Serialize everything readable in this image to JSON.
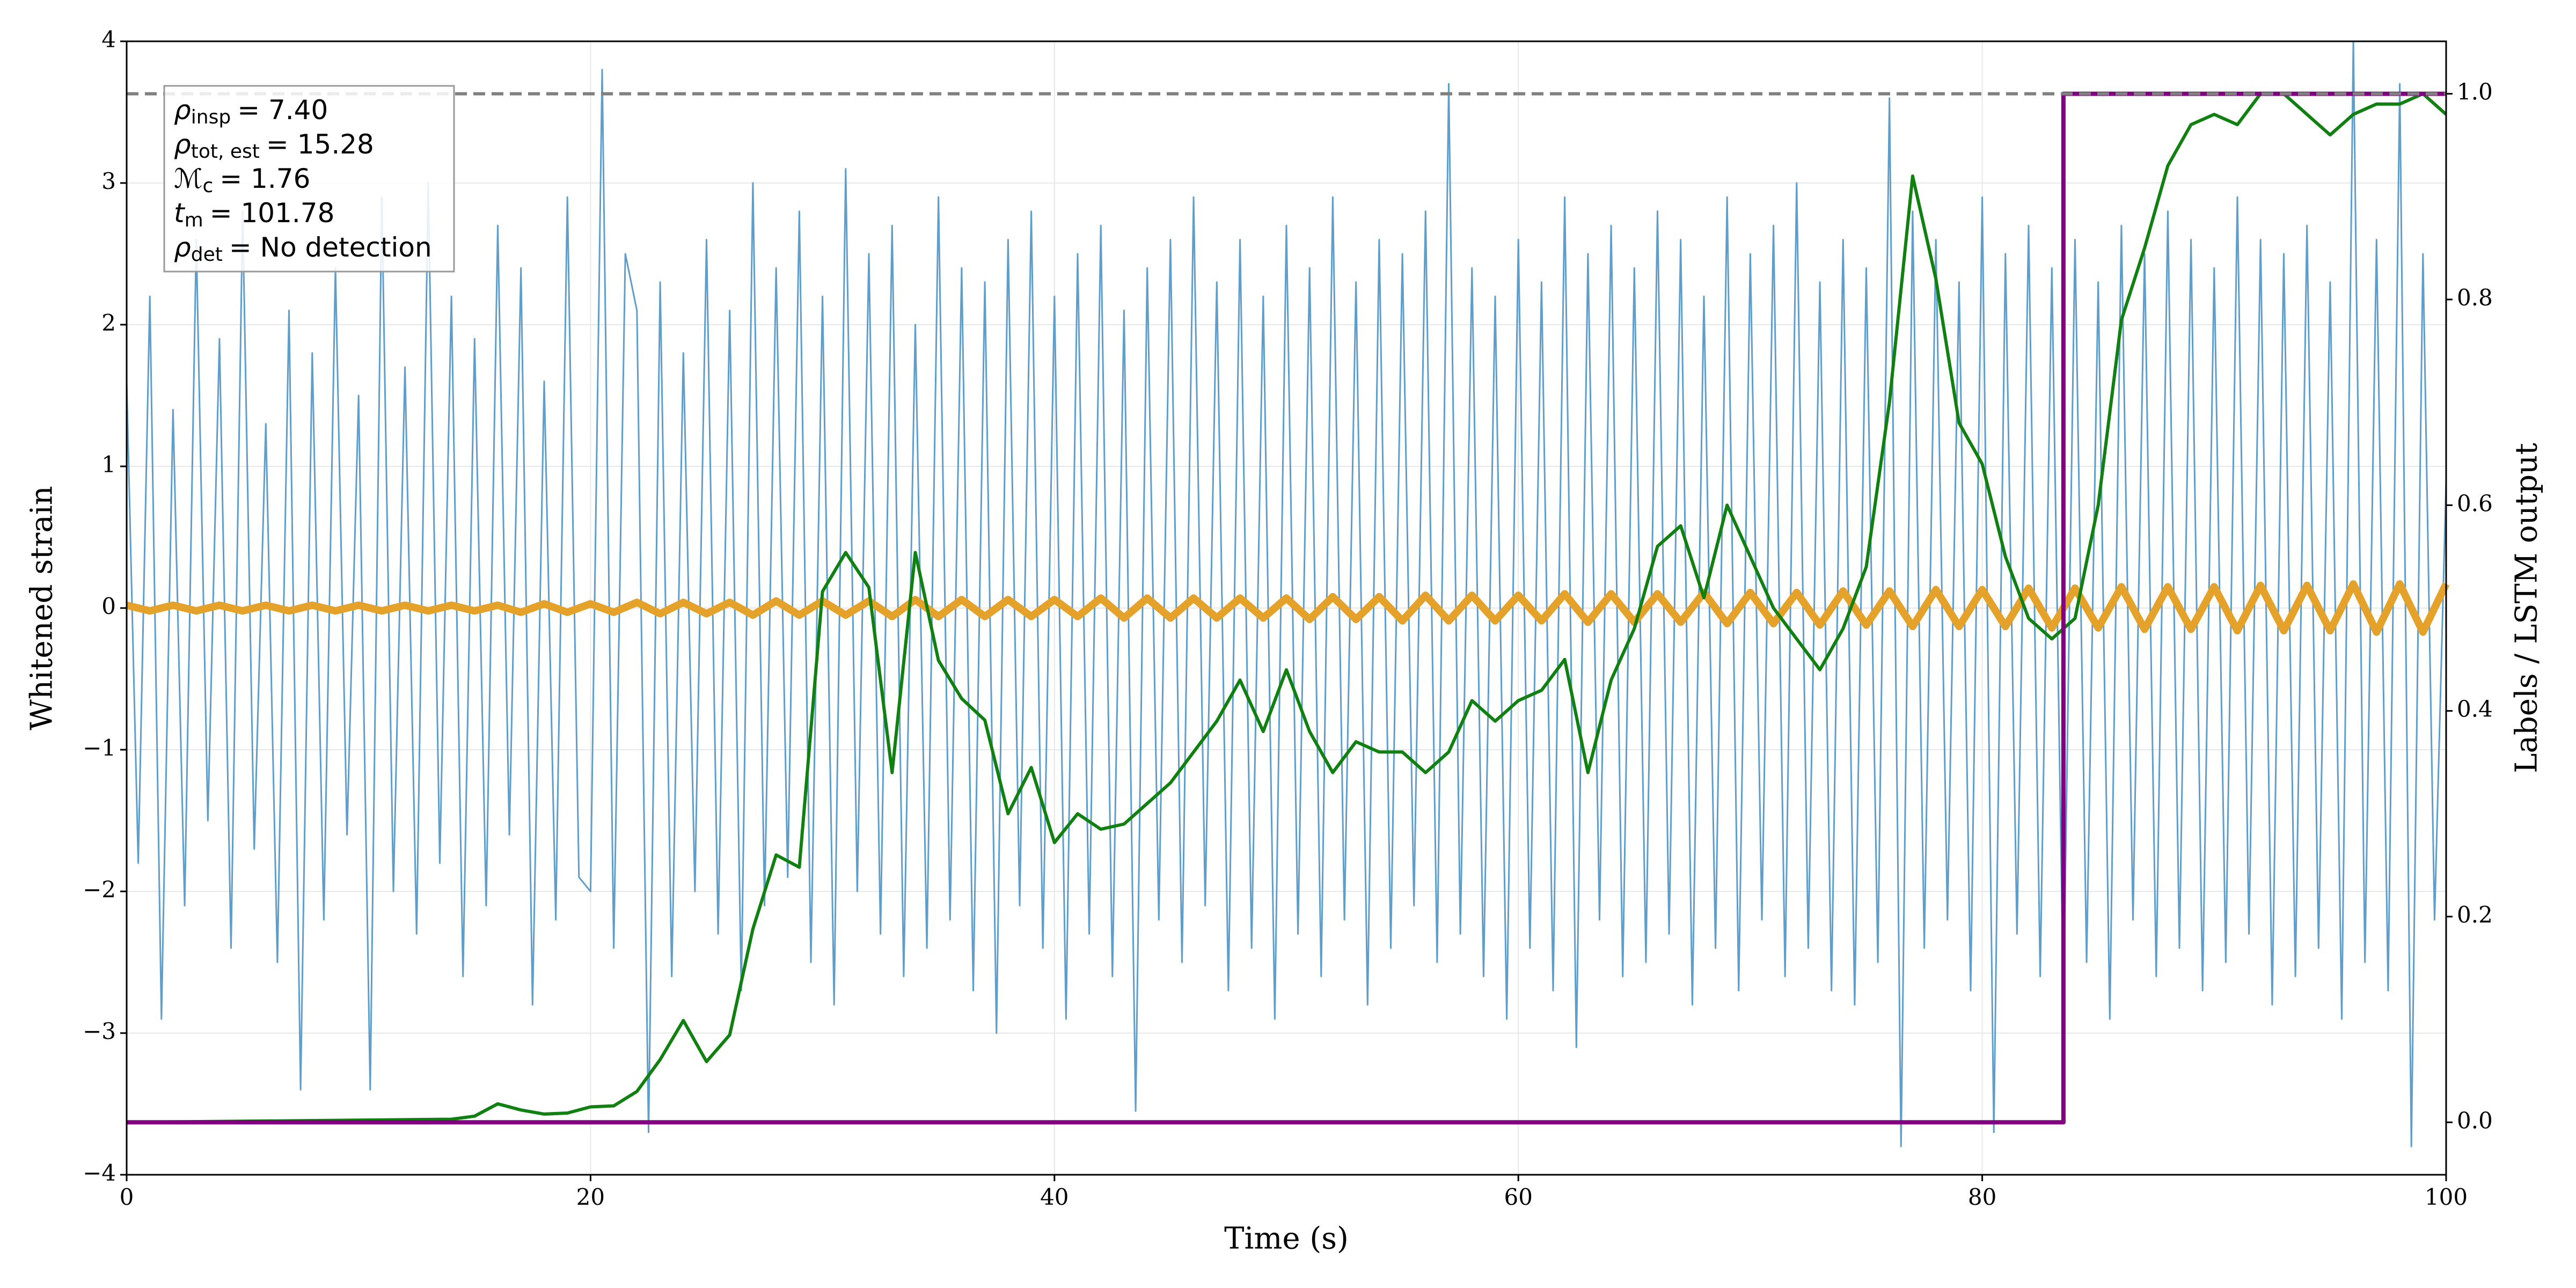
{
  "chart_data": {
    "type": "line",
    "xlabel": "Time (s)",
    "ylabel": "Whitened strain",
    "y2label": "Labels / LSTM output",
    "xlim": [
      0,
      100
    ],
    "xticks": [
      0,
      20,
      40,
      60,
      80,
      100
    ],
    "ylim": [
      -4,
      4
    ],
    "yticks": [
      {
        "value": -4,
        "label": "−4"
      },
      {
        "value": -3,
        "label": "−3"
      },
      {
        "value": -2,
        "label": "−2"
      },
      {
        "value": -1,
        "label": "−1"
      },
      0,
      1,
      2,
      3,
      4
    ],
    "y2lim": [
      -0.051,
      1.051
    ],
    "y2ticks": [
      {
        "value": 0,
        "label": "0.0"
      },
      0.2,
      0.4,
      0.6,
      0.8,
      {
        "value": 1,
        "label": "1.0"
      }
    ],
    "grid": true,
    "annotations": [
      {
        "symbol": "ρ",
        "sub": "insp",
        "text": "= 7.40"
      },
      {
        "symbol": "ρ",
        "sub": "tot, est",
        "text": "= 15.28"
      },
      {
        "symbol": "ℳ",
        "sub": "c",
        "text": "= 1.76"
      },
      {
        "symbol": "t",
        "sub": "m",
        "text": "= 101.78"
      },
      {
        "symbol": "ρ",
        "sub": "det",
        "text": "= No detection"
      }
    ],
    "series": [
      {
        "color": "#5f9ecb",
        "axis": "y",
        "width": 3,
        "x": [
          0,
          0.5,
          1,
          1.5,
          2,
          2.5,
          3,
          3.5,
          4,
          4.5,
          5,
          5.5,
          6,
          6.5,
          7,
          7.5,
          8,
          8.5,
          9,
          9.5,
          10,
          10.5,
          11,
          11.5,
          12,
          12.5,
          13,
          13.5,
          14,
          14.5,
          15,
          15.5,
          16,
          16.5,
          17,
          17.5,
          18,
          18.5,
          19,
          19.5,
          20,
          20.5,
          21,
          21.5,
          22,
          22.5,
          23,
          23.5,
          24,
          24.5,
          25,
          25.5,
          26,
          26.5,
          27,
          27.5,
          28,
          28.5,
          29,
          29.5,
          30,
          30.5,
          31,
          31.5,
          32,
          32.5,
          33,
          33.5,
          34,
          34.5,
          35,
          35.5,
          36,
          36.5,
          37,
          37.5,
          38,
          38.5,
          39,
          39.5,
          40,
          40.5,
          41,
          41.5,
          42,
          42.5,
          43,
          43.5,
          44,
          44.5,
          45,
          45.5,
          46,
          46.5,
          47,
          47.5,
          48,
          48.5,
          49,
          49.5,
          50,
          50.5,
          51,
          51.5,
          52,
          52.5,
          53,
          53.5,
          54,
          54.5,
          55,
          55.5,
          56,
          56.5,
          57,
          57.5,
          58,
          58.5,
          59,
          59.5,
          60,
          60.5,
          61,
          61.5,
          62,
          62.5,
          63,
          63.5,
          64,
          64.5,
          65,
          65.5,
          66,
          66.5,
          67,
          67.5,
          68,
          68.5,
          69,
          69.5,
          70,
          70.5,
          71,
          71.5,
          72,
          72.5,
          73,
          73.5,
          74,
          74.5,
          75,
          75.5,
          76,
          76.5,
          77,
          77.5,
          78,
          78.5,
          79,
          79.5,
          80,
          80.5,
          81,
          81.5,
          82,
          82.5,
          83,
          83.5,
          84,
          84.5,
          85,
          85.5,
          86,
          86.5,
          87,
          87.5,
          88,
          88.5,
          89,
          89.5,
          90,
          90.5,
          91,
          91.5,
          92,
          92.5,
          93,
          93.5,
          94,
          94.5,
          95,
          95.5,
          96,
          96.5,
          97,
          97.5,
          98,
          98.5,
          99,
          99.5,
          100
        ],
        "values": [
          1.6,
          -1.8,
          2.2,
          -2.9,
          1.4,
          -2.1,
          2.6,
          -1.5,
          1.9,
          -2.4,
          2.8,
          -1.7,
          1.3,
          -2.5,
          2.1,
          -3.4,
          1.8,
          -2.2,
          2.4,
          -1.6,
          1.5,
          -3.4,
          2.9,
          -2.0,
          1.7,
          -2.3,
          3.0,
          -1.8,
          2.2,
          -2.6,
          1.9,
          -2.1,
          2.7,
          -1.6,
          2.4,
          -2.8,
          1.6,
          -2.2,
          2.9,
          -1.9,
          -2.0,
          3.8,
          -2.4,
          2.5,
          2.1,
          -3.7,
          2.3,
          -2.6,
          1.8,
          -2.0,
          2.6,
          -2.3,
          2.1,
          -2.7,
          3.0,
          -2.1,
          2.4,
          -1.9,
          2.8,
          -2.5,
          2.2,
          -2.8,
          3.1,
          -2.0,
          2.5,
          -2.3,
          2.7,
          -2.6,
          2.0,
          -2.4,
          2.9,
          -2.2,
          2.4,
          -2.7,
          2.3,
          -3.0,
          2.6,
          -2.1,
          2.8,
          -2.4,
          2.2,
          -2.9,
          2.5,
          -2.3,
          2.7,
          -2.6,
          2.1,
          -3.55,
          2.4,
          -2.2,
          2.6,
          -2.5,
          2.9,
          -2.1,
          2.3,
          -2.7,
          2.6,
          -2.4,
          2.2,
          -2.9,
          2.7,
          -2.3,
          2.4,
          -2.6,
          2.9,
          -2.2,
          2.3,
          -2.8,
          2.6,
          -2.4,
          2.5,
          -2.1,
          2.8,
          -2.5,
          3.7,
          -2.3,
          2.4,
          -2.6,
          2.2,
          -2.9,
          2.6,
          -2.4,
          2.3,
          -2.7,
          2.9,
          -3.1,
          2.5,
          -2.2,
          2.7,
          -2.6,
          2.4,
          -2.5,
          2.8,
          -2.3,
          2.6,
          -2.8,
          2.2,
          -2.4,
          2.9,
          -2.7,
          2.5,
          -2.2,
          2.7,
          -2.6,
          3.0,
          -2.4,
          2.3,
          -2.7,
          2.6,
          -2.8,
          2.4,
          -2.5,
          3.6,
          -3.8,
          2.8,
          -2.4,
          2.6,
          -2.2,
          2.3,
          -2.7,
          2.9,
          -3.7,
          2.5,
          -2.3,
          2.7,
          -2.6,
          2.4,
          -2.8,
          2.6,
          -2.5,
          2.3,
          -2.9,
          2.7,
          -2.2,
          2.5,
          -2.6,
          2.8,
          -2.4,
          2.6,
          -2.7,
          2.4,
          -2.5,
          2.9,
          -2.3,
          2.6,
          -2.8,
          2.5,
          -2.6,
          2.7,
          -2.4,
          2.3,
          -2.9,
          4.0,
          -2.5,
          2.6,
          -2.7,
          3.7,
          -3.8,
          2.5,
          -2.2,
          0.9
        ]
      },
      {
        "color": "#e5a22b",
        "axis": "y",
        "width": 14,
        "x": [
          0,
          1,
          2,
          3,
          4,
          5,
          6,
          7,
          8,
          9,
          10,
          11,
          12,
          13,
          14,
          15,
          16,
          17,
          18,
          19,
          20,
          21,
          22,
          23,
          24,
          25,
          26,
          27,
          28,
          29,
          30,
          31,
          32,
          33,
          34,
          35,
          36,
          37,
          38,
          39,
          40,
          41,
          42,
          43,
          44,
          45,
          46,
          47,
          48,
          49,
          50,
          51,
          52,
          53,
          54,
          55,
          56,
          57,
          58,
          59,
          60,
          61,
          62,
          63,
          64,
          65,
          66,
          67,
          68,
          69,
          70,
          71,
          72,
          73,
          74,
          75,
          76,
          77,
          78,
          79,
          80,
          81,
          82,
          83,
          84,
          85,
          86,
          87,
          88,
          89,
          90,
          91,
          92,
          93,
          94,
          95,
          96,
          97,
          98,
          99,
          100
        ],
        "values": [
          0.02,
          -0.02,
          0.02,
          -0.02,
          0.02,
          -0.02,
          0.02,
          -0.02,
          0.02,
          -0.02,
          0.02,
          -0.02,
          0.02,
          -0.02,
          0.02,
          -0.02,
          0.02,
          -0.03,
          0.03,
          -0.03,
          0.03,
          -0.03,
          0.04,
          -0.04,
          0.04,
          -0.04,
          0.04,
          -0.05,
          0.05,
          -0.05,
          0.05,
          -0.05,
          0.05,
          -0.06,
          0.06,
          -0.06,
          0.06,
          -0.06,
          0.06,
          -0.06,
          0.06,
          -0.06,
          0.07,
          -0.07,
          0.07,
          -0.07,
          0.07,
          -0.07,
          0.07,
          -0.07,
          0.07,
          -0.08,
          0.08,
          -0.08,
          0.08,
          -0.09,
          0.09,
          -0.09,
          0.09,
          -0.09,
          0.09,
          -0.09,
          0.1,
          -0.1,
          0.1,
          -0.1,
          0.1,
          -0.1,
          0.11,
          -0.11,
          0.11,
          -0.11,
          0.11,
          -0.12,
          0.12,
          -0.12,
          0.12,
          -0.13,
          0.13,
          -0.13,
          0.13,
          -0.13,
          0.14,
          -0.14,
          0.14,
          -0.14,
          0.15,
          -0.15,
          0.15,
          -0.15,
          0.15,
          -0.16,
          0.16,
          -0.16,
          0.16,
          -0.16,
          0.17,
          -0.17,
          0.17,
          -0.17,
          0.17
        ]
      },
      {
        "color": "#108010",
        "axis": "y2",
        "width": 6,
        "x": [
          0,
          14,
          15,
          16,
          17,
          18,
          19,
          20,
          21,
          22,
          23,
          24,
          25,
          26,
          27,
          28,
          29,
          30,
          31,
          32,
          33,
          34,
          35,
          36,
          37,
          38,
          39,
          40,
          41,
          42,
          43,
          44,
          45,
          46,
          47,
          48,
          49,
          50,
          51,
          52,
          53,
          54,
          55,
          56,
          57,
          58,
          59,
          60,
          61,
          62,
          63,
          64,
          65,
          66,
          67,
          68,
          69,
          70,
          71,
          72,
          73,
          74,
          75,
          76,
          77,
          78,
          79,
          80,
          81,
          82,
          83,
          84,
          85,
          86,
          87,
          88,
          89,
          90,
          91,
          92,
          93,
          94,
          95,
          96,
          97,
          98,
          99,
          100
        ],
        "values": [
          0,
          0.003,
          0.006,
          0.018,
          0.012,
          0.008,
          0.009,
          0.015,
          0.016,
          0.03,
          0.061,
          0.099,
          0.059,
          0.085,
          0.188,
          0.26,
          0.248,
          0.516,
          0.554,
          0.52,
          0.34,
          0.554,
          0.449,
          0.412,
          0.391,
          0.3,
          0.345,
          0.272,
          0.3,
          0.285,
          0.29,
          0.31,
          0.33,
          0.36,
          0.39,
          0.43,
          0.38,
          0.44,
          0.38,
          0.34,
          0.37,
          0.36,
          0.36,
          0.34,
          0.36,
          0.41,
          0.39,
          0.41,
          0.42,
          0.45,
          0.34,
          0.43,
          0.48,
          0.56,
          0.58,
          0.51,
          0.6,
          0.55,
          0.5,
          0.47,
          0.44,
          0.48,
          0.54,
          0.7,
          0.92,
          0.82,
          0.68,
          0.64,
          0.55,
          0.49,
          0.47,
          0.49,
          0.6,
          0.78,
          0.85,
          0.93,
          0.97,
          0.98,
          0.97,
          1.0,
          1.0,
          0.98,
          0.96,
          0.98,
          0.99,
          0.99,
          1.0,
          0.98
        ]
      },
      {
        "color": "#800080",
        "axis": "y2",
        "width": 8,
        "x": [
          0,
          83.5,
          83.5,
          100
        ],
        "values": [
          0,
          0,
          1,
          1
        ]
      },
      {
        "color": "#808080",
        "axis": "y2",
        "width": 6,
        "dashed": true,
        "x": [
          0,
          100
        ],
        "values": [
          1,
          1
        ]
      }
    ]
  }
}
